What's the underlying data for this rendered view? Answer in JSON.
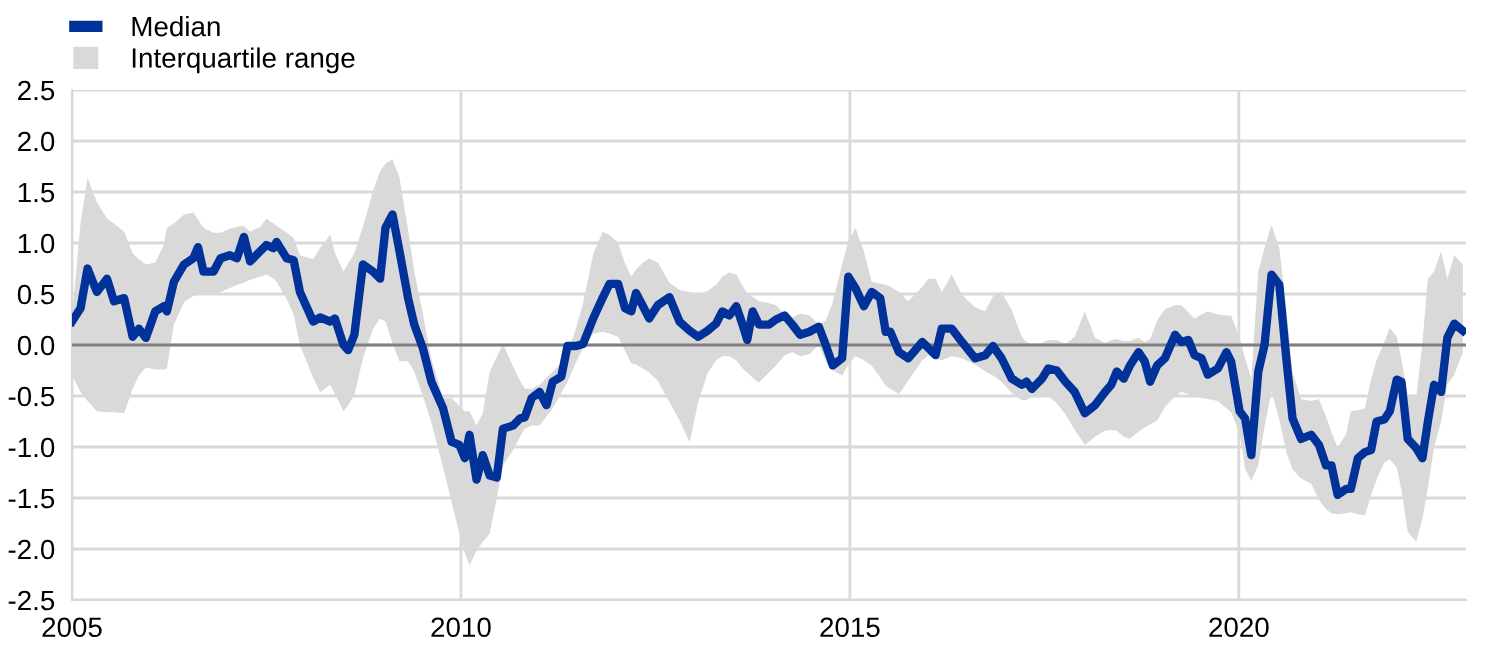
{
  "chart_data": {
    "type": "line",
    "xlim": [
      2005,
      2022.92
    ],
    "xticks": [
      2005,
      2010,
      2015,
      2020
    ],
    "ylim": [
      -2.5,
      2.5
    ],
    "yticks": [
      {
        "value": -2.5,
        "label": "-2.5"
      },
      {
        "value": -2.0,
        "label": "-2.0"
      },
      {
        "value": -1.5,
        "label": "-1.5"
      },
      {
        "value": -1.0,
        "label": "-1.0"
      },
      {
        "value": -0.5,
        "label": "-0.5"
      },
      {
        "value": 0.0,
        "label": "0.0"
      },
      {
        "value": 0.5,
        "label": "0.5"
      },
      {
        "value": 1.0,
        "label": "1.0"
      },
      {
        "value": 1.5,
        "label": "1.5"
      },
      {
        "value": 2.0,
        "label": "2.0"
      },
      {
        "value": 2.5,
        "label": "2.5"
      }
    ],
    "grid": true,
    "legend": "top left",
    "ref_lines": [
      {
        "axis": "y",
        "value": 0,
        "color": "#808080"
      }
    ],
    "series": [
      {
        "name": "Median",
        "color": "#003299",
        "x": [
          2005.0,
          2005.11,
          2005.2,
          2005.32,
          2005.45,
          2005.54,
          2005.67,
          2005.78,
          2005.86,
          2005.95,
          2006.07,
          2006.18,
          2006.22,
          2006.31,
          2006.44,
          2006.56,
          2006.62,
          2006.69,
          2006.82,
          2006.91,
          2007.03,
          2007.12,
          2007.21,
          2007.29,
          2007.42,
          2007.5,
          2007.59,
          2007.63,
          2007.76,
          2007.85,
          2007.93,
          2008.1,
          2008.19,
          2008.32,
          2008.38,
          2008.49,
          2008.55,
          2008.63,
          2008.74,
          2008.87,
          2008.96,
          2009.03,
          2009.12,
          2009.21,
          2009.32,
          2009.4,
          2009.51,
          2009.62,
          2009.77,
          2009.88,
          2009.98,
          2010.05,
          2010.11,
          2010.2,
          2010.28,
          2010.37,
          2010.46,
          2010.54,
          2010.67,
          2010.76,
          2010.82,
          2010.91,
          2011.01,
          2011.1,
          2011.18,
          2011.29,
          2011.37,
          2011.48,
          2011.57,
          2011.7,
          2011.82,
          2011.91,
          2012.02,
          2012.11,
          2012.19,
          2012.25,
          2012.34,
          2012.42,
          2012.53,
          2012.68,
          2012.81,
          2012.94,
          2013.05,
          2013.17,
          2013.28,
          2013.36,
          2013.45,
          2013.54,
          2013.62,
          2013.68,
          2013.75,
          2013.83,
          2013.96,
          2014.05,
          2014.16,
          2014.26,
          2014.36,
          2014.48,
          2014.6,
          2014.69,
          2014.78,
          2014.9,
          2014.98,
          2015.07,
          2015.18,
          2015.28,
          2015.39,
          2015.46,
          2015.52,
          2015.63,
          2015.75,
          2015.93,
          2016.01,
          2016.1,
          2016.18,
          2016.31,
          2016.44,
          2016.61,
          2016.74,
          2016.84,
          2016.95,
          2017.08,
          2017.21,
          2017.27,
          2017.34,
          2017.47,
          2017.55,
          2017.66,
          2017.77,
          2017.89,
          2018.02,
          2018.15,
          2018.28,
          2018.36,
          2018.43,
          2018.52,
          2018.6,
          2018.71,
          2018.79,
          2018.86,
          2018.95,
          2019.05,
          2019.18,
          2019.26,
          2019.35,
          2019.43,
          2019.52,
          2019.6,
          2019.73,
          2019.84,
          2019.9,
          2020.01,
          2020.08,
          2020.16,
          2020.25,
          2020.33,
          2020.42,
          2020.52,
          2020.61,
          2020.69,
          2020.8,
          2020.93,
          2021.03,
          2021.12,
          2021.19,
          2021.27,
          2021.38,
          2021.44,
          2021.53,
          2021.62,
          2021.7,
          2021.77,
          2021.87,
          2021.94,
          2022.03,
          2022.09,
          2022.17,
          2022.28,
          2022.36,
          2022.43,
          2022.51,
          2022.6,
          2022.68,
          2022.77,
          2022.88
        ],
        "values": [
          0.23,
          0.36,
          0.75,
          0.52,
          0.65,
          0.43,
          0.46,
          0.08,
          0.16,
          0.07,
          0.33,
          0.38,
          0.33,
          0.62,
          0.79,
          0.85,
          0.96,
          0.72,
          0.72,
          0.85,
          0.88,
          0.85,
          1.06,
          0.82,
          0.92,
          0.98,
          0.95,
          1.01,
          0.85,
          0.83,
          0.52,
          0.23,
          0.27,
          0.23,
          0.26,
          0.0,
          -0.05,
          0.1,
          0.79,
          0.72,
          0.65,
          1.15,
          1.28,
          0.92,
          0.46,
          0.2,
          -0.03,
          -0.36,
          -0.62,
          -0.95,
          -0.98,
          -1.11,
          -0.88,
          -1.32,
          -1.08,
          -1.28,
          -1.3,
          -0.82,
          -0.79,
          -0.72,
          -0.71,
          -0.52,
          -0.46,
          -0.59,
          -0.36,
          -0.31,
          -0.01,
          -0.01,
          0.01,
          0.26,
          0.46,
          0.6,
          0.6,
          0.36,
          0.33,
          0.51,
          0.38,
          0.26,
          0.39,
          0.47,
          0.23,
          0.14,
          0.08,
          0.14,
          0.21,
          0.33,
          0.29,
          0.38,
          0.2,
          0.05,
          0.33,
          0.2,
          0.2,
          0.25,
          0.29,
          0.2,
          0.1,
          0.13,
          0.18,
          0.0,
          -0.2,
          -0.13,
          0.67,
          0.56,
          0.38,
          0.52,
          0.46,
          0.13,
          0.13,
          -0.07,
          -0.13,
          0.03,
          -0.03,
          -0.1,
          0.16,
          0.16,
          0.03,
          -0.13,
          -0.1,
          -0.01,
          -0.13,
          -0.33,
          -0.39,
          -0.36,
          -0.43,
          -0.33,
          -0.23,
          -0.25,
          -0.36,
          -0.46,
          -0.67,
          -0.59,
          -0.46,
          -0.39,
          -0.26,
          -0.33,
          -0.2,
          -0.07,
          -0.16,
          -0.36,
          -0.2,
          -0.13,
          0.1,
          0.03,
          0.05,
          -0.1,
          -0.13,
          -0.29,
          -0.23,
          -0.07,
          -0.16,
          -0.65,
          -0.72,
          -1.08,
          -0.26,
          0.0,
          0.69,
          0.59,
          -0.13,
          -0.72,
          -0.92,
          -0.88,
          -0.98,
          -1.18,
          -1.18,
          -1.47,
          -1.41,
          -1.41,
          -1.11,
          -1.05,
          -1.03,
          -0.75,
          -0.73,
          -0.65,
          -0.34,
          -0.36,
          -0.92,
          -1.01,
          -1.11,
          -0.75,
          -0.39,
          -0.46,
          0.07,
          0.21,
          0.14
        ],
        "upper": [
          0.26,
          1.2,
          1.64,
          1.4,
          1.24,
          1.19,
          1.11,
          0.9,
          0.84,
          0.79,
          0.81,
          0.98,
          1.15,
          1.19,
          1.28,
          1.3,
          1.23,
          1.15,
          1.1,
          1.1,
          1.14,
          1.16,
          1.17,
          1.11,
          1.16,
          1.24,
          1.19,
          1.17,
          1.1,
          1.05,
          0.88,
          0.84,
          0.95,
          1.08,
          0.9,
          0.72,
          0.8,
          0.9,
          1.16,
          1.51,
          1.7,
          1.78,
          1.82,
          1.64,
          1.13,
          0.72,
          0.31,
          -0.14,
          -0.52,
          -0.52,
          -0.6,
          -0.65,
          -0.65,
          -0.79,
          -0.67,
          -0.26,
          -0.12,
          0.01,
          -0.21,
          -0.35,
          -0.43,
          -0.43,
          -0.39,
          -0.32,
          -0.26,
          -0.18,
          -0.09,
          0.17,
          0.41,
          0.89,
          1.11,
          1.08,
          1.0,
          0.8,
          0.67,
          0.74,
          0.81,
          0.85,
          0.81,
          0.61,
          0.54,
          0.52,
          0.5,
          0.53,
          0.59,
          0.67,
          0.71,
          0.69,
          0.58,
          0.51,
          0.47,
          0.43,
          0.41,
          0.39,
          0.3,
          0.27,
          0.31,
          0.29,
          0.2,
          0.24,
          0.42,
          0.79,
          1.01,
          1.15,
          0.92,
          0.62,
          0.6,
          0.59,
          0.57,
          0.52,
          0.43,
          0.57,
          0.65,
          0.65,
          0.52,
          0.69,
          0.49,
          0.37,
          0.33,
          0.48,
          0.52,
          0.34,
          0.08,
          0.03,
          0.01,
          0.02,
          0.05,
          0.05,
          0.01,
          0.08,
          0.33,
          0.07,
          0.02,
          0.05,
          0.06,
          0.04,
          0.04,
          0.07,
          0.03,
          0.06,
          0.24,
          0.35,
          0.39,
          0.39,
          0.32,
          0.26,
          0.3,
          0.33,
          0.3,
          0.29,
          0.29,
          0.07,
          -0.13,
          -0.33,
          0.72,
          0.95,
          1.18,
          0.95,
          0.36,
          -0.27,
          -0.53,
          -0.55,
          -0.53,
          -0.7,
          -0.85,
          -1.01,
          -0.87,
          -0.65,
          -0.64,
          -0.62,
          -0.34,
          -0.15,
          0.03,
          0.17,
          0.08,
          -0.14,
          -0.49,
          -0.52,
          0.03,
          0.65,
          0.72,
          0.92,
          0.65,
          0.88,
          0.79
        ],
        "lower": [
          -0.3,
          -0.46,
          -0.55,
          -0.65,
          -0.66,
          -0.66,
          -0.67,
          -0.43,
          -0.3,
          -0.22,
          -0.24,
          -0.24,
          -0.23,
          0.2,
          0.42,
          0.48,
          0.5,
          0.51,
          0.5,
          0.52,
          0.56,
          0.59,
          0.61,
          0.64,
          0.67,
          0.69,
          0.65,
          0.62,
          0.45,
          0.3,
          0.0,
          -0.32,
          -0.46,
          -0.39,
          -0.48,
          -0.65,
          -0.59,
          -0.49,
          -0.13,
          0.16,
          0.26,
          0.23,
          0.02,
          -0.16,
          -0.16,
          -0.26,
          -0.5,
          -0.76,
          -1.2,
          -1.54,
          -1.85,
          -2.04,
          -2.16,
          -2.02,
          -1.93,
          -1.85,
          -1.5,
          -1.18,
          -1.03,
          -0.9,
          -0.82,
          -0.79,
          -0.79,
          -0.7,
          -0.62,
          -0.47,
          -0.36,
          -0.17,
          -0.03,
          0.11,
          0.13,
          0.11,
          0.08,
          -0.06,
          -0.18,
          -0.19,
          -0.23,
          -0.27,
          -0.35,
          -0.56,
          -0.74,
          -0.95,
          -0.56,
          -0.28,
          -0.15,
          -0.11,
          -0.11,
          -0.15,
          -0.23,
          -0.27,
          -0.32,
          -0.37,
          -0.27,
          -0.2,
          -0.1,
          -0.07,
          -0.11,
          -0.09,
          0.0,
          -0.16,
          -0.25,
          -0.3,
          -0.19,
          -0.11,
          -0.15,
          -0.2,
          -0.32,
          -0.4,
          -0.43,
          -0.48,
          -0.35,
          -0.15,
          -0.1,
          -0.13,
          -0.15,
          -0.11,
          -0.13,
          -0.19,
          -0.26,
          -0.3,
          -0.36,
          -0.47,
          -0.54,
          -0.54,
          -0.51,
          -0.49,
          -0.5,
          -0.57,
          -0.68,
          -0.83,
          -0.98,
          -0.9,
          -0.84,
          -0.83,
          -0.84,
          -0.9,
          -0.92,
          -0.85,
          -0.81,
          -0.78,
          -0.74,
          -0.61,
          -0.5,
          -0.46,
          -0.48,
          -0.5,
          -0.52,
          -0.53,
          -0.55,
          -0.62,
          -0.66,
          -0.86,
          -1.21,
          -1.33,
          -1.18,
          -0.8,
          -0.46,
          -0.73,
          -1.05,
          -1.22,
          -1.31,
          -1.36,
          -1.52,
          -1.61,
          -1.65,
          -1.66,
          -1.65,
          -1.64,
          -1.66,
          -1.67,
          -1.47,
          -1.32,
          -1.15,
          -1.12,
          -1.2,
          -1.42,
          -1.83,
          -1.93,
          -1.7,
          -1.4,
          -1.0,
          -0.75,
          -0.39,
          -0.29,
          -0.07
        ]
      },
      {
        "name": "Interquartile range",
        "type": "area",
        "color": "#d9d9d9"
      }
    ]
  }
}
